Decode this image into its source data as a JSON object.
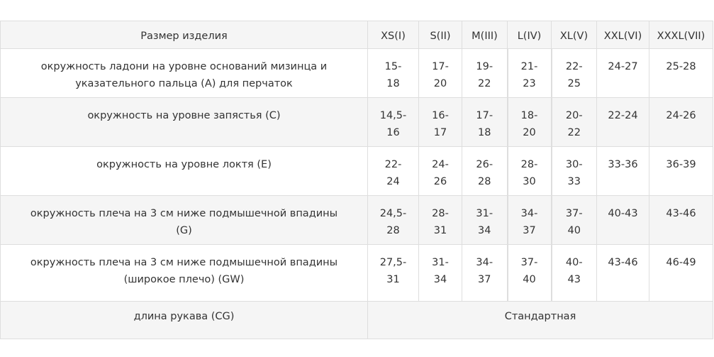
{
  "table": {
    "headers": [
      "Размер изделия",
      "XS(I)",
      "S(II)",
      "M(III)",
      "L(IV)",
      "XL(V)",
      "XXL(VI)",
      "XXXL(VII)"
    ],
    "rows": [
      {
        "label": "окружность ладони на уровне оснований мизинца и указательного пальца (A) для перчаток",
        "values": [
          "15-18",
          "17-20",
          "19-22",
          "21-23",
          "22-25",
          "24-27",
          "25-28"
        ]
      },
      {
        "label": "окружность на уровне запястья (C)",
        "values": [
          "14,5-16",
          "16-17",
          "17-18",
          "18-20",
          "20-22",
          "22-24",
          "24-26"
        ]
      },
      {
        "label": "окружность на уровне локтя (E)",
        "values": [
          "22-24",
          "24-26",
          "26-28",
          "28-30",
          "30-33",
          "33-36",
          "36-39"
        ]
      },
      {
        "label": "окружность плеча на 3 см ниже подмышечной впадины (G)",
        "values": [
          "24,5-28",
          "28-31",
          "31-34",
          "34-37",
          "37-40",
          "40-43",
          "43-46"
        ]
      },
      {
        "label": "окружность плеча на 3 см ниже подмышечной впадины (широкое плечо) (GW)",
        "values": [
          "27,5-31",
          "31-34",
          "34-37",
          "37-40",
          "40-43",
          "43-46",
          "46-49"
        ]
      }
    ],
    "footer": {
      "label": "длина рукава (CG)",
      "value": "Стандартная"
    }
  }
}
